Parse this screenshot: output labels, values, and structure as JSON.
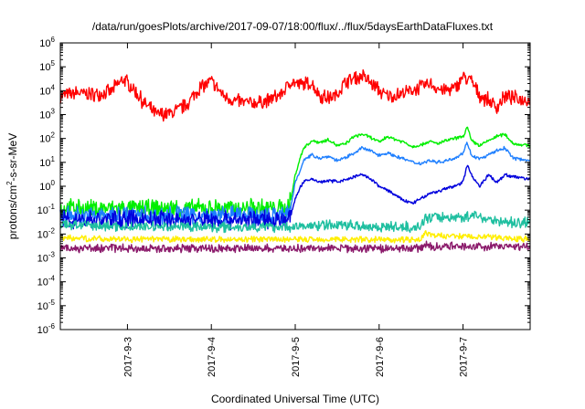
{
  "chart_data": {
    "type": "line",
    "title": "/data/run/goesPlots/archive/2017-09-07/18:00/flux/../flux/5daysEarthDataFluxes.txt",
    "xlabel": "Coordinated Universal Time (UTC)",
    "ylabel_base": "protons/cm",
    "ylabel_sup": "2",
    "ylabel_tail": "-s-sr-MeV",
    "y_scale": "log",
    "ylim": [
      -6,
      6
    ],
    "y_ticks": [
      {
        "exp": 6,
        "base": "10",
        "sup": "6"
      },
      {
        "exp": 5,
        "base": "10",
        "sup": "5"
      },
      {
        "exp": 4,
        "base": "10",
        "sup": "4"
      },
      {
        "exp": 3,
        "base": "10",
        "sup": "3"
      },
      {
        "exp": 2,
        "base": "10",
        "sup": "2"
      },
      {
        "exp": 1,
        "base": "10",
        "sup": "1"
      },
      {
        "exp": 0,
        "base": "10",
        "sup": "0"
      },
      {
        "exp": -1,
        "base": "10",
        "sup": "-1"
      },
      {
        "exp": -2,
        "base": "10",
        "sup": "-2"
      },
      {
        "exp": -3,
        "base": "10",
        "sup": "-3"
      },
      {
        "exp": -4,
        "base": "10",
        "sup": "-4"
      },
      {
        "exp": -5,
        "base": "10",
        "sup": "-5"
      },
      {
        "exp": -6,
        "base": "10",
        "sup": "-6"
      }
    ],
    "xlim_days": [
      2.2,
      7.8
    ],
    "x_ticks": [
      {
        "day": 3,
        "label": "2017-9-3"
      },
      {
        "day": 4,
        "label": "2017-9-4"
      },
      {
        "day": 5,
        "label": "2017-9-5"
      },
      {
        "day": 6,
        "label": "2017-9-6"
      },
      {
        "day": 7,
        "label": "2017-9-7"
      }
    ],
    "grid": false,
    "legend": "none",
    "series": [
      {
        "color": "#ff0000",
        "x": [
          2.2,
          2.4,
          2.6,
          2.8,
          2.95,
          3.05,
          3.2,
          3.35,
          3.55,
          3.7,
          3.85,
          4.0,
          4.15,
          4.3,
          4.5,
          4.7,
          4.85,
          4.95,
          5.05,
          5.2,
          5.3,
          5.4,
          5.5,
          5.6,
          5.8,
          5.95,
          6.05,
          6.15,
          6.3,
          6.45,
          6.6,
          6.75,
          6.9,
          7.0,
          7.1,
          7.2,
          7.3,
          7.4,
          7.5,
          7.6,
          7.8
        ],
        "y": [
          6000,
          8000,
          7000,
          9000,
          30000,
          15000,
          3000,
          1000,
          1200,
          2500,
          12000,
          25000,
          6000,
          3500,
          3000,
          4000,
          8000,
          25000,
          18000,
          20000,
          6000,
          5000,
          7000,
          25000,
          40000,
          15000,
          7000,
          6000,
          8000,
          12000,
          20000,
          10000,
          12000,
          40000,
          25000,
          6000,
          4000,
          2000,
          6000,
          5000,
          4000
        ],
        "noise": 0.35
      },
      {
        "color": "#00ee00",
        "x": [
          2.2,
          3.0,
          4.0,
          4.9,
          4.95,
          5.0,
          5.05,
          5.1,
          5.2,
          5.3,
          5.4,
          5.5,
          5.6,
          5.7,
          5.8,
          5.9,
          6.0,
          6.1,
          6.2,
          6.3,
          6.4,
          6.5,
          6.6,
          6.7,
          6.8,
          6.9,
          7.0,
          7.05,
          7.1,
          7.2,
          7.3,
          7.4,
          7.5,
          7.6,
          7.8
        ],
        "y": [
          0.12,
          0.12,
          0.12,
          0.12,
          0.3,
          3,
          12,
          40,
          80,
          70,
          90,
          50,
          60,
          120,
          150,
          110,
          70,
          120,
          90,
          70,
          45,
          55,
          75,
          60,
          80,
          100,
          120,
          300,
          80,
          50,
          80,
          120,
          150,
          60,
          50
        ],
        "noise": 0.45,
        "noise_until": 4.95,
        "noise_after": 0.08
      },
      {
        "color": "#1e7fff",
        "x": [
          2.2,
          3.0,
          4.0,
          4.9,
          4.95,
          5.0,
          5.05,
          5.1,
          5.2,
          5.3,
          5.4,
          5.5,
          5.6,
          5.7,
          5.8,
          5.9,
          6.0,
          6.1,
          6.2,
          6.3,
          6.4,
          6.5,
          6.6,
          6.7,
          6.8,
          6.9,
          7.0,
          7.05,
          7.1,
          7.2,
          7.3,
          7.4,
          7.5,
          7.6,
          7.8
        ],
        "y": [
          0.06,
          0.06,
          0.06,
          0.06,
          0.15,
          1.5,
          4,
          12,
          20,
          15,
          18,
          12,
          15,
          25,
          40,
          30,
          20,
          25,
          18,
          14,
          10,
          9,
          12,
          10,
          12,
          15,
          25,
          70,
          20,
          14,
          20,
          30,
          40,
          15,
          12
        ],
        "noise": 0.45,
        "noise_until": 4.95,
        "noise_after": 0.08
      },
      {
        "color": "#0000dd",
        "x": [
          2.2,
          3.0,
          4.0,
          4.9,
          4.95,
          5.0,
          5.05,
          5.1,
          5.2,
          5.3,
          5.4,
          5.5,
          5.6,
          5.7,
          5.8,
          5.9,
          6.0,
          6.1,
          6.2,
          6.3,
          6.4,
          6.5,
          6.6,
          6.7,
          6.8,
          6.9,
          7.0,
          7.05,
          7.1,
          7.2,
          7.3,
          7.4,
          7.5,
          7.6,
          7.8
        ],
        "y": [
          0.04,
          0.04,
          0.04,
          0.04,
          0.06,
          0.3,
          0.8,
          1.5,
          2,
          1.5,
          1.7,
          1.6,
          1.8,
          2.5,
          3,
          2,
          1,
          0.7,
          0.4,
          0.25,
          0.2,
          0.3,
          0.5,
          0.6,
          0.8,
          1.0,
          1.5,
          8,
          3,
          1,
          3,
          1.5,
          3,
          2.5,
          2
        ],
        "noise": 0.45,
        "noise_until": 4.95,
        "noise_after": 0.08
      },
      {
        "color": "#1fbfa0",
        "x": [
          2.2,
          3.0,
          4.0,
          5.0,
          5.5,
          6.0,
          6.5,
          6.55,
          6.6,
          7.0,
          7.1,
          7.5,
          7.8
        ],
        "y": [
          0.025,
          0.02,
          0.02,
          0.02,
          0.025,
          0.02,
          0.02,
          0.05,
          0.05,
          0.05,
          0.06,
          0.03,
          0.03
        ],
        "noise": 0.25
      },
      {
        "color": "#ffee00",
        "x": [
          2.2,
          3.0,
          4.0,
          5.0,
          5.5,
          6.0,
          6.5,
          6.55,
          6.6,
          7.0,
          7.5,
          7.8
        ],
        "y": [
          0.007,
          0.006,
          0.006,
          0.006,
          0.006,
          0.006,
          0.006,
          0.012,
          0.009,
          0.008,
          0.007,
          0.006
        ],
        "noise": 0.15
      },
      {
        "color": "#8b1a6b",
        "x": [
          2.2,
          3.0,
          4.0,
          5.0,
          5.5,
          6.0,
          6.5,
          6.55,
          6.6,
          7.0,
          7.5,
          7.8
        ],
        "y": [
          0.0025,
          0.0025,
          0.0025,
          0.0025,
          0.0025,
          0.0025,
          0.0025,
          0.004,
          0.003,
          0.003,
          0.003,
          0.003
        ],
        "noise": 0.2
      }
    ]
  }
}
